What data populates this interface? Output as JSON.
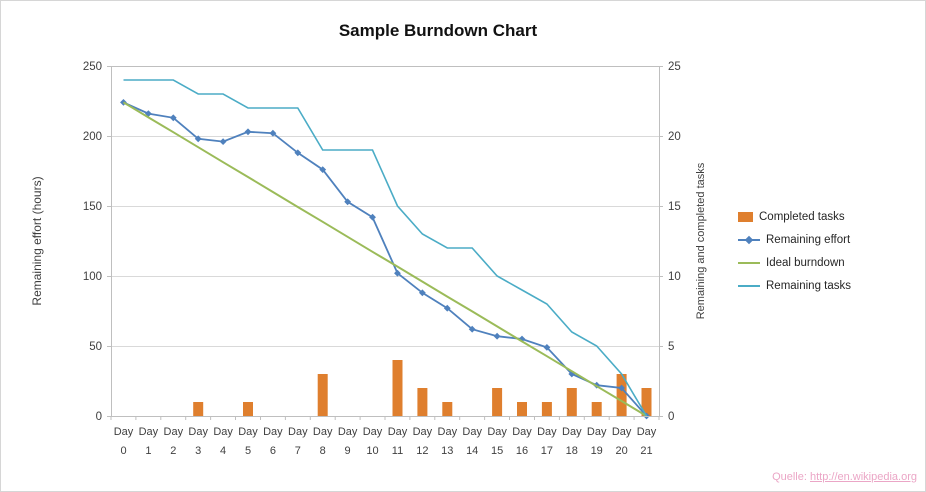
{
  "source": {
    "label": "Quelle:",
    "url": "http://en.wikipedia.org"
  },
  "chart_data": {
    "type": "bar+line combo",
    "title": "Sample Burndown Chart",
    "grid": true,
    "legend_position": "right",
    "categories": [
      "Day 0",
      "Day 1",
      "Day 2",
      "Day 3",
      "Day 4",
      "Day 5",
      "Day 6",
      "Day 7",
      "Day 8",
      "Day 9",
      "Day 10",
      "Day 11",
      "Day 12",
      "Day 13",
      "Day 14",
      "Day 15",
      "Day 16",
      "Day 17",
      "Day 18",
      "Day 19",
      "Day 20",
      "Day 21"
    ],
    "left_axis": {
      "label": "Remaining effort (hours)",
      "min": 0,
      "max": 250,
      "ticks": [
        0,
        50,
        100,
        150,
        200,
        250
      ]
    },
    "right_axis": {
      "label": "Remaining and completed tasks",
      "min": 0,
      "max": 25,
      "ticks": [
        0,
        5,
        10,
        15,
        20,
        25
      ]
    },
    "colors": {
      "grid": "#d9d9d9",
      "axis": "#bfbfbf",
      "text": "#3f3f3f"
    },
    "series": [
      {
        "name": "Completed tasks",
        "type": "bar",
        "axis": "right",
        "color": "#df7f2e",
        "values": [
          0,
          0,
          0,
          1,
          0,
          1,
          0,
          0,
          3,
          0,
          0,
          4,
          2,
          1,
          0,
          2,
          1,
          1,
          2,
          1,
          3,
          2
        ]
      },
      {
        "name": "Remaining effort",
        "type": "line",
        "marker": "diamond",
        "axis": "left",
        "color": "#4f81bd",
        "stroke_width": 1.8,
        "values": [
          224,
          216,
          213,
          198,
          196,
          203,
          202,
          188,
          176,
          153,
          142,
          102,
          88,
          77,
          62,
          57,
          55,
          49,
          30,
          22,
          20,
          0
        ]
      },
      {
        "name": "Ideal burndown",
        "type": "line",
        "axis": "left",
        "color": "#9bbb59",
        "stroke_width": 2,
        "values": [
          224,
          213.3,
          202.7,
          192,
          181.3,
          170.7,
          160,
          149.3,
          138.7,
          128,
          117.3,
          106.7,
          96,
          85.3,
          74.7,
          64,
          53.3,
          42.7,
          32,
          21.3,
          10.7,
          0
        ]
      },
      {
        "name": "Remaining tasks",
        "type": "line",
        "axis": "right",
        "color": "#4bacc6",
        "stroke_width": 1.6,
        "values": [
          24,
          24,
          24,
          23,
          23,
          22,
          22,
          22,
          19,
          19,
          19,
          15,
          13,
          12,
          12,
          10,
          9,
          8,
          6,
          5,
          3,
          0
        ]
      }
    ]
  }
}
